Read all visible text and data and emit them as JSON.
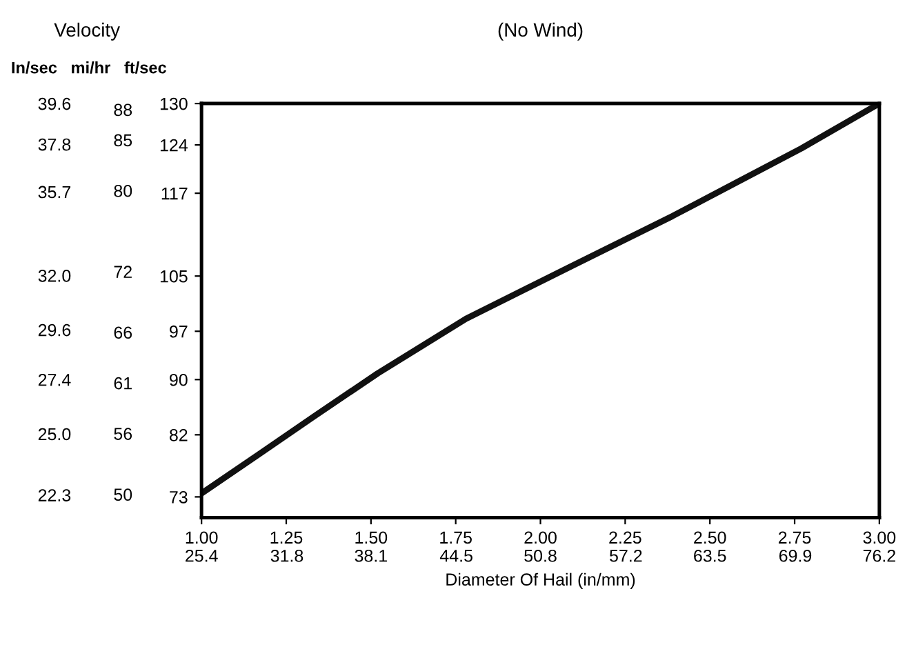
{
  "chart_data": {
    "type": "line",
    "title": "(No Wind)",
    "xlabel": "Diameter Of Hail (in/mm)",
    "annotations": [
      "Velocity",
      "In/sec   mi/hr   ft/sec"
    ],
    "series": [
      {
        "color": "#111111",
        "x": [
          1.0,
          1.17,
          1.33,
          1.52,
          1.78,
          2.09,
          2.39,
          2.77,
          3.0
        ],
        "values": [
          73.5,
          79.2,
          84.6,
          90.9,
          98.8,
          106.4,
          113.7,
          123.5,
          130
        ]
      }
    ],
    "xlim": [
      1.0,
      3.0
    ],
    "xticks": [
      {
        "value": 1.0,
        "label": "1.00"
      },
      1.25,
      {
        "value": 1.5,
        "label": "1.50"
      },
      1.75,
      {
        "value": 2.0,
        "label": "2.00"
      },
      2.25,
      {
        "value": 2.5,
        "label": "2.50"
      },
      2.75,
      {
        "value": 3.0,
        "label": "3.00"
      }
    ],
    "x2lim": [
      25.4,
      76.2
    ],
    "x2ticks": [
      25.4,
      31.8,
      38.1,
      44.5,
      50.8,
      57.2,
      63.5,
      69.9,
      76.2
    ],
    "ylim": [
      70,
      130
    ],
    "yticks": [
      130,
      124,
      117,
      105,
      97,
      90,
      82,
      73
    ],
    "y2lim": [
      47.7,
      88.6
    ],
    "y2ticks": [
      88,
      85,
      80,
      72,
      66,
      61,
      56,
      50
    ],
    "y3lim": [
      21.3,
      39.6
    ],
    "y3ticks": [
      39.6,
      37.8,
      35.7,
      {
        "value": 32.0,
        "label": "32.0"
      },
      29.6,
      27.4,
      {
        "value": 25.0,
        "label": "25.0"
      },
      22.3
    ],
    "grid": false,
    "legend": false,
    "marker": "none",
    "line_style": "solid"
  }
}
